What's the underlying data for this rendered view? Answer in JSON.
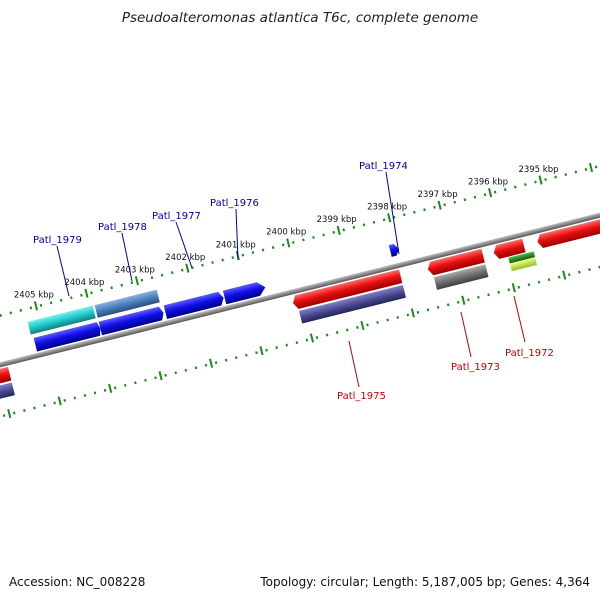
{
  "title": "Pseudoalteromonas atlantica T6c, complete genome",
  "footer": {
    "accession": "Accession: NC_008228",
    "summary": "Topology: circular; Length: 5,187,005 bp; Genes: 4,364"
  },
  "scale": {
    "tick_labels": [
      "2395 kbp",
      "2396 kbp",
      "2397 kbp",
      "2398 kbp",
      "2399 kbp",
      "2400 kbp",
      "2401 kbp",
      "2402 kbp",
      "2403 kbp",
      "2404 kbp",
      "2405 kbp"
    ]
  },
  "gene_labels": {
    "top": [
      "Patl_1979",
      "Patl_1978",
      "Patl_1977",
      "Patl_1976",
      "Patl_1974"
    ],
    "bottom": [
      "Patl_1975",
      "Patl_1973",
      "Patl_1972"
    ]
  },
  "colors": {
    "forward_cds": "#1010e8",
    "reverse_cds": "#e81010",
    "backbone": "#8a8a8a",
    "tick": "#1a8a1a",
    "label_forward": "#0000b0",
    "label_reverse": "#c00000",
    "cog_cyan": "#20c8c8",
    "cog_steelblue": "#4a7fb8",
    "cog_slate": "#4a4a90",
    "cog_gray": "#707070",
    "cog_green": "#1a8a1a",
    "cog_lime": "#c8f040"
  }
}
